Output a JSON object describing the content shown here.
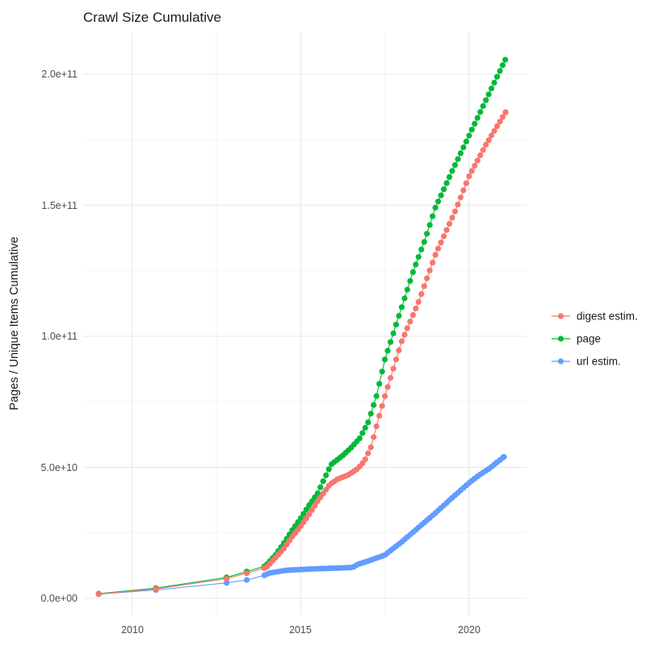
{
  "chart_data": {
    "type": "line",
    "title": "Crawl Size Cumulative",
    "value_unit": "1e9 (values below are billions of pages / items)",
    "grid": "on",
    "legend_position": "right",
    "x_axis": {
      "range": [
        2008.54,
        2021.71
      ],
      "ticks": [
        {
          "label": "2010",
          "year": 2010
        },
        {
          "label": "2015",
          "year": 2015
        },
        {
          "label": "2020",
          "year": 2020
        }
      ],
      "minor": [
        2012.5,
        2017.5
      ]
    },
    "y_axis": {
      "title": "Pages / Unique Items Cumulative",
      "range_e9": [
        -6.5,
        216
      ],
      "ticks": [
        {
          "label": "0.0e+00",
          "value_e9": 0
        },
        {
          "label": "5.0e+10",
          "value_e9": 50
        },
        {
          "label": "1.0e+11",
          "value_e9": 100
        },
        {
          "label": "1.5e+11",
          "value_e9": 150
        },
        {
          "label": "2.0e+11",
          "value_e9": 200
        }
      ],
      "minor_e9": [
        25,
        75,
        125,
        175
      ]
    },
    "series": [
      {
        "name": "digest estim.",
        "color": "#F8766D",
        "dots_monthly_from": 2013.92,
        "knots": [
          [
            2009.0,
            1.7
          ],
          [
            2010.7,
            3.6
          ],
          [
            2012.8,
            7.5
          ],
          [
            2013.4,
            9.6
          ],
          [
            2013.92,
            11.5
          ],
          [
            2014.0,
            12.0
          ],
          [
            2014.25,
            15.5
          ],
          [
            2014.5,
            19.0
          ],
          [
            2014.75,
            23.5
          ],
          [
            2015.0,
            27.5
          ],
          [
            2015.25,
            32.0
          ],
          [
            2015.5,
            37.0
          ],
          [
            2015.87,
            43.5
          ],
          [
            2016.1,
            45.5
          ],
          [
            2016.4,
            47.0
          ],
          [
            2016.7,
            49.5
          ],
          [
            2016.9,
            52.5
          ],
          [
            2017.1,
            58.0
          ],
          [
            2017.3,
            68.0
          ],
          [
            2017.5,
            77.0
          ],
          [
            2018.0,
            98.0
          ],
          [
            2018.5,
            113.0
          ],
          [
            2019.0,
            131.0
          ],
          [
            2019.6,
            148.0
          ],
          [
            2020.0,
            161.0
          ],
          [
            2020.5,
            173.0
          ],
          [
            2021.09,
            185.5
          ]
        ]
      },
      {
        "name": "page",
        "color": "#00BA38",
        "dots_monthly_from": 2013.92,
        "knots": [
          [
            2009.0,
            1.8
          ],
          [
            2010.7,
            3.9
          ],
          [
            2012.8,
            8.0
          ],
          [
            2013.4,
            10.2
          ],
          [
            2013.92,
            12.2
          ],
          [
            2014.0,
            13.0
          ],
          [
            2014.25,
            16.5
          ],
          [
            2014.5,
            21.0
          ],
          [
            2014.75,
            26.0
          ],
          [
            2015.0,
            30.5
          ],
          [
            2015.25,
            35.5
          ],
          [
            2015.5,
            40.0
          ],
          [
            2015.9,
            51.0
          ],
          [
            2016.25,
            54.5
          ],
          [
            2016.5,
            57.5
          ],
          [
            2016.75,
            61.0
          ],
          [
            2017.0,
            67.0
          ],
          [
            2017.25,
            77.0
          ],
          [
            2017.5,
            91.0
          ],
          [
            2018.0,
            111.0
          ],
          [
            2018.35,
            125.0
          ],
          [
            2018.7,
            137.0
          ],
          [
            2019.0,
            149.0
          ],
          [
            2019.5,
            163.0
          ],
          [
            2020.0,
            176.5
          ],
          [
            2020.5,
            190.0
          ],
          [
            2021.08,
            205.5
          ]
        ]
      },
      {
        "name": "url estim.",
        "color": "#619CFF",
        "dots_monthly_from": 2013.92,
        "knots": [
          [
            2009.0,
            1.6
          ],
          [
            2010.7,
            3.2
          ],
          [
            2012.8,
            5.9
          ],
          [
            2013.4,
            7.0
          ],
          [
            2013.92,
            8.8
          ],
          [
            2014.08,
            9.7
          ],
          [
            2014.33,
            10.2
          ],
          [
            2014.58,
            10.7
          ],
          [
            2015.0,
            11.0
          ],
          [
            2015.5,
            11.3
          ],
          [
            2016.0,
            11.5
          ],
          [
            2016.55,
            11.8
          ],
          [
            2016.7,
            13.0
          ],
          [
            2017.0,
            14.2
          ],
          [
            2017.5,
            16.5
          ],
          [
            2018.0,
            21.5
          ],
          [
            2018.5,
            27.0
          ],
          [
            2019.0,
            32.5
          ],
          [
            2019.3,
            36.0
          ],
          [
            2019.6,
            39.5
          ],
          [
            2020.0,
            44.0
          ],
          [
            2020.3,
            47.0
          ],
          [
            2020.6,
            49.5
          ],
          [
            2021.04,
            54.0
          ]
        ]
      }
    ],
    "legend": {
      "items": [
        {
          "label": "digest estim."
        },
        {
          "label": "page"
        },
        {
          "label": "url estim."
        }
      ]
    }
  }
}
